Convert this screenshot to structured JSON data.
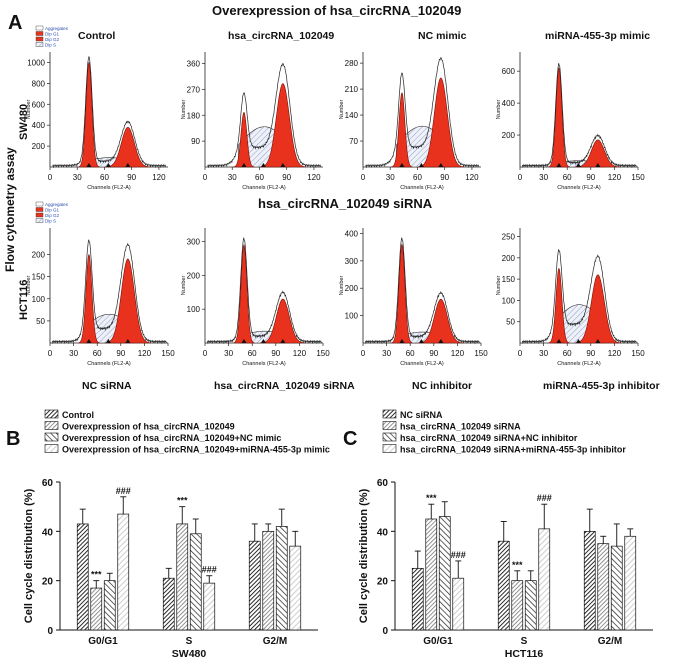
{
  "panelA": {
    "letter": "A",
    "title_top": "Overexpression of hsa_circRNA_102049",
    "title_mid": "hsa_circRNA_102049 siRNA",
    "side_title": "Flow cytometry assay",
    "row_labels": [
      "SW480",
      "HCT116"
    ],
    "top_titles": [
      "Control",
      "hsa_circRNA_102049",
      "NC mimic",
      "miRNA-455-3p mimic"
    ],
    "bottom_titles": [
      "NC siRNA",
      "hsa_circRNA_102049 siRNA",
      "NC inhibitor",
      "miRNA-455-3p inhibitor"
    ],
    "hist_xlabel": "Channels (FL2-A)",
    "hist_ylabel": "Number",
    "hist_legend": [
      "Aggregates",
      "Dip G1",
      "Dip G2",
      "Dip S"
    ],
    "hist_xticks": [
      "0",
      "30",
      "60",
      "90",
      "120",
      "150"
    ],
    "histograms": [
      {
        "row": 0,
        "col": 0,
        "ymax": 1100,
        "yticks": [
          "200",
          "400",
          "600",
          "800",
          "1000"
        ],
        "xticks": [
          "0",
          "30",
          "60",
          "90",
          "120"
        ],
        "xmax": 130,
        "g1": 1000,
        "g2": 380,
        "s": 90,
        "legend": true
      },
      {
        "row": 0,
        "col": 1,
        "ymax": 400,
        "yticks": [
          "90",
          "180",
          "270",
          "360"
        ],
        "xticks": [
          "0",
          "30",
          "60",
          "90",
          "120"
        ],
        "xmax": 130,
        "g1": 190,
        "g2": 290,
        "s": 140,
        "legend": false
      },
      {
        "row": 0,
        "col": 2,
        "ymax": 310,
        "yticks": [
          "70",
          "140",
          "210",
          "280"
        ],
        "xticks": [
          "0",
          "30",
          "60",
          "90",
          "120"
        ],
        "xmax": 130,
        "g1": 200,
        "g2": 240,
        "s": 110,
        "legend": false
      },
      {
        "row": 0,
        "col": 3,
        "ymax": 720,
        "yticks": [
          "200",
          "400",
          "600"
        ],
        "xticks": [
          "0",
          "30",
          "60",
          "90",
          "120",
          "150"
        ],
        "xmax": 150,
        "g1": 620,
        "g2": 170,
        "s": 40,
        "legend": false
      },
      {
        "row": 1,
        "col": 0,
        "ymax": 260,
        "yticks": [
          "50",
          "100",
          "150",
          "200"
        ],
        "xticks": [
          "0",
          "30",
          "60",
          "90",
          "120",
          "150"
        ],
        "xmax": 150,
        "g1": 200,
        "g2": 190,
        "s": 65,
        "legend": true
      },
      {
        "row": 1,
        "col": 1,
        "ymax": 340,
        "yticks": [
          "100",
          "200",
          "300"
        ],
        "xticks": [
          "0",
          "30",
          "60",
          "90",
          "120",
          "150"
        ],
        "xmax": 150,
        "g1": 290,
        "g2": 130,
        "s": 35,
        "legend": false
      },
      {
        "row": 1,
        "col": 2,
        "ymax": 420,
        "yticks": [
          "100",
          "200",
          "300",
          "400"
        ],
        "xticks": [
          "0",
          "30",
          "60",
          "90",
          "120",
          "150"
        ],
        "xmax": 150,
        "g1": 360,
        "g2": 160,
        "s": 40,
        "legend": false
      },
      {
        "row": 1,
        "col": 3,
        "ymax": 270,
        "yticks": [
          "50",
          "100",
          "150",
          "200",
          "250"
        ],
        "xticks": [
          "0",
          "30",
          "60",
          "90",
          "120",
          "150"
        ],
        "xmax": 150,
        "g1": 175,
        "g2": 160,
        "s": 90,
        "legend": false
      }
    ]
  },
  "chart_data": [
    {
      "type": "bar",
      "panel": "B",
      "title": "",
      "xlabel": "SW480",
      "ylabel": "Cell cycle distribution (%)",
      "ylim": [
        0,
        60
      ],
      "yticks": [
        "0",
        "20",
        "40",
        "60"
      ],
      "categories": [
        "G0/G1",
        "S",
        "G2/M"
      ],
      "series": [
        {
          "name": "Control",
          "values": [
            43,
            21,
            36
          ],
          "errors": [
            6,
            4,
            7
          ]
        },
        {
          "name": "Overexpression of hsa_circRNA_102049",
          "values": [
            17,
            43,
            40
          ],
          "errors": [
            3,
            7,
            3
          ]
        },
        {
          "name": "Overexpression of hsa_circRNA_102049+NC mimic",
          "values": [
            20,
            39,
            42
          ],
          "errors": [
            3,
            6,
            7
          ]
        },
        {
          "name": "Overexpression of hsa_circRNA_102049+miRNA-455-3p mimic",
          "values": [
            47,
            19,
            34
          ],
          "errors": [
            7,
            3,
            6
          ]
        }
      ],
      "annotations": [
        {
          "category": 0,
          "series": 1,
          "text": "***"
        },
        {
          "category": 0,
          "series": 3,
          "text": "###"
        },
        {
          "category": 1,
          "series": 1,
          "text": "***"
        },
        {
          "category": 1,
          "series": 3,
          "text": "###"
        }
      ]
    },
    {
      "type": "bar",
      "panel": "C",
      "title": "",
      "xlabel": "HCT116",
      "ylabel": "Cell cycle distribution (%)",
      "ylim": [
        0,
        60
      ],
      "yticks": [
        "0",
        "20",
        "40",
        "60"
      ],
      "categories": [
        "G0/G1",
        "S",
        "G2/M"
      ],
      "series": [
        {
          "name": "NC siRNA",
          "values": [
            25,
            36,
            40
          ],
          "errors": [
            7,
            8,
            9
          ]
        },
        {
          "name": "hsa_circRNA_102049 siRNA",
          "values": [
            45,
            20,
            35
          ],
          "errors": [
            6,
            4,
            3
          ]
        },
        {
          "name": "hsa_circRNA_102049 siRNA+NC inhibitor",
          "values": [
            46,
            20,
            34
          ],
          "errors": [
            6,
            4,
            9
          ]
        },
        {
          "name": "hsa_circRNA_102049 siRNA+miRNA-455-3p inhibitor",
          "values": [
            21,
            41,
            38
          ],
          "errors": [
            7,
            10,
            3
          ]
        }
      ],
      "annotations": [
        {
          "category": 0,
          "series": 1,
          "text": "***"
        },
        {
          "category": 0,
          "series": 3,
          "text": "###"
        },
        {
          "category": 1,
          "series": 1,
          "text": "***"
        },
        {
          "category": 1,
          "series": 3,
          "text": "###"
        }
      ]
    }
  ]
}
